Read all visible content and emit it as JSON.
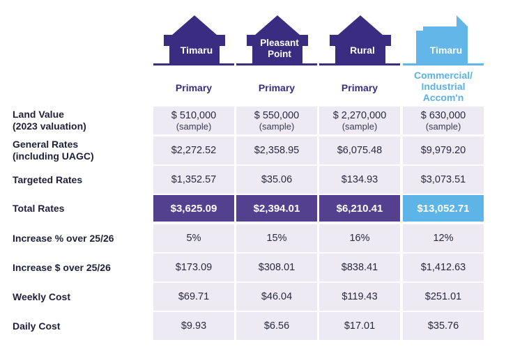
{
  "colors": {
    "purple": "#3a2c80",
    "light_blue": "#62b6e8",
    "cell_bg": "#edeaf4",
    "total_purple": "#53418f",
    "total_blue": "#5db4e6"
  },
  "columns": [
    {
      "house_label": "Timaru",
      "type": "Primary",
      "accent": "#3a2c80"
    },
    {
      "house_label": "Pleasant\nPoint",
      "type": "Primary",
      "accent": "#3a2c80"
    },
    {
      "house_label": "Rural",
      "type": "Primary",
      "accent": "#3a2c80"
    },
    {
      "house_label": "Timaru",
      "type": "Commercial/\nIndustrial\nAccom'n",
      "accent": "#62b6e8"
    }
  ],
  "rows": [
    {
      "label": "Land Value\n(2023 valuation)",
      "values": [
        "$ 510,000",
        "$ 550,000",
        "$ 2,270,000",
        "$ 630,000"
      ],
      "sub": [
        "(sample)",
        "(sample)",
        "(sample)",
        "(sample)"
      ]
    },
    {
      "label": "General Rates\n(including UAGC)",
      "values": [
        "$2,272.52",
        "$2,358.95",
        "$6,075.48",
        "$9,979.20"
      ]
    },
    {
      "label": "Targeted Rates",
      "values": [
        "$1,352.57",
        "$35.06",
        "$134.93",
        "$3,073.51"
      ]
    },
    {
      "label": "Total Rates",
      "values": [
        "$3,625.09",
        "$2,394.01",
        "$6,210.41",
        "$13,052.71"
      ],
      "highlight": true
    },
    {
      "label": "Increase % over 25/26",
      "values": [
        "5%",
        "15%",
        "16%",
        "12%"
      ]
    },
    {
      "label": "Increase $ over 25/26",
      "values": [
        "$173.09",
        "$308.01",
        "$838.41",
        "$1,412.63"
      ]
    },
    {
      "label": "Weekly Cost",
      "values": [
        "$69.71",
        "$46.04",
        "$119.43",
        "$251.01"
      ]
    },
    {
      "label": "Daily Cost",
      "values": [
        "$9.93",
        "$6.56",
        "$17.01",
        "$35.76"
      ]
    }
  ]
}
